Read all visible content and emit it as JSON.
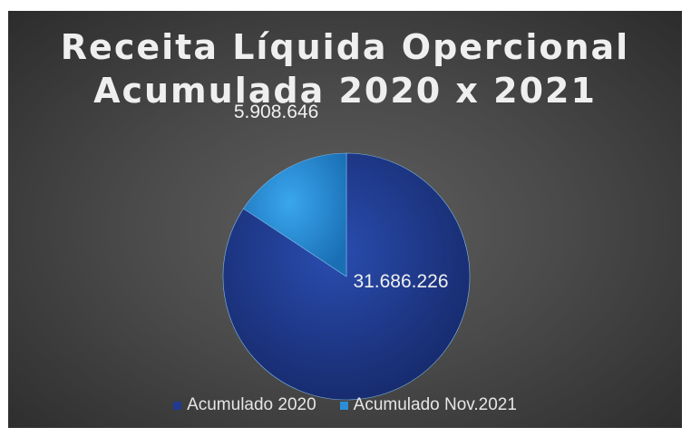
{
  "chart_data": {
    "type": "pie",
    "title_lines": [
      "Receita Líquida Opercional",
      "Acumulada 2020 x 2021"
    ],
    "slices": [
      {
        "name": "Acumulado 2020",
        "value": 31686226,
        "label": "31.686.226",
        "color": "#1f3a8f"
      },
      {
        "name": "Acumulado Nov.2021",
        "value": 5908646,
        "label": "5.908.646",
        "color": "#2b8fd8"
      }
    ],
    "legend_position": "bottom"
  }
}
